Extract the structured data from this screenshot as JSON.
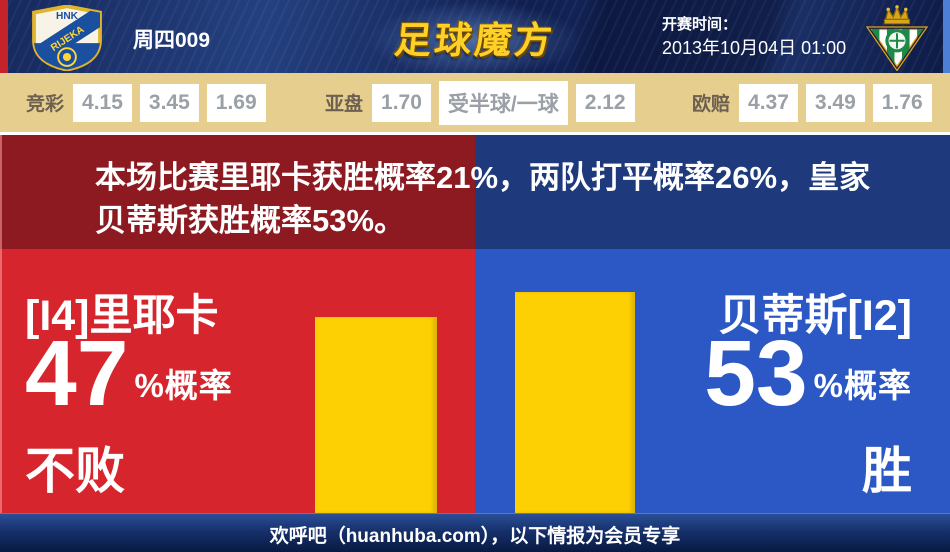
{
  "header": {
    "match_code": "周四009",
    "site_logo": "足球魔方",
    "kickoff_label": "开赛时间：",
    "kickoff_time": "2013年10月04日 01:00",
    "home_crest": {
      "top_text": "HNK",
      "band_text": "RIJEKA"
    },
    "away_crest": {
      "name": "real-betis"
    }
  },
  "odds": {
    "groups": [
      {
        "label": "竞彩",
        "values": [
          "4.15",
          "3.45",
          "1.69"
        ]
      },
      {
        "label": "亚盘",
        "values": [
          "1.70",
          "受半球/一球",
          "2.12"
        ]
      },
      {
        "label": "欧赔",
        "values": [
          "4.37",
          "3.49",
          "1.76"
        ]
      }
    ]
  },
  "banner": {
    "lines": [
      "本场比赛里耶卡获胜概率21%，两队打平概率26%，皇家",
      "贝蒂斯获胜概率53%。"
    ]
  },
  "prediction": {
    "left": {
      "team": "[I4]里耶卡",
      "percent": "47",
      "percent_suffix": "%概率",
      "outcome": "不败",
      "value": 47
    },
    "right": {
      "team": "贝蒂斯[I2]",
      "percent": "53",
      "percent_suffix": "%概率",
      "outcome": "胜",
      "value": 53
    }
  },
  "chart_data": {
    "type": "bar",
    "categories": [
      "[I4]里耶卡 不败",
      "贝蒂斯[I2] 胜"
    ],
    "values": [
      47,
      53
    ],
    "unit": "%",
    "title": "",
    "xlabel": "",
    "ylabel": "",
    "ylim": [
      0,
      100
    ],
    "bar_color": "#fdd004",
    "legend": "none",
    "grid": false,
    "notes": "win probability 里耶卡 21%, draw 26%, 皇家贝蒂斯 53%"
  },
  "footer": {
    "text": "欢呼吧（huanhuba.com），以下情报为会员专享"
  },
  "colors": {
    "header_navy": "#16295e",
    "edge_red": "#c5232b",
    "edge_light_blue": "#4d7fd6",
    "odds_bg": "#e6cf8e",
    "odds_value_text": "#9aa0a6",
    "odds_label_text": "#6e6050",
    "banner_dark_red": "#8c1a20",
    "banner_dark_blue": "#1e3a7c",
    "panel_red": "#d6252d",
    "panel_blue": "#2b58c5",
    "bar_yellow": "#fdd004",
    "logo_gold": "#ffd028",
    "footer_navy": "#16306b"
  }
}
